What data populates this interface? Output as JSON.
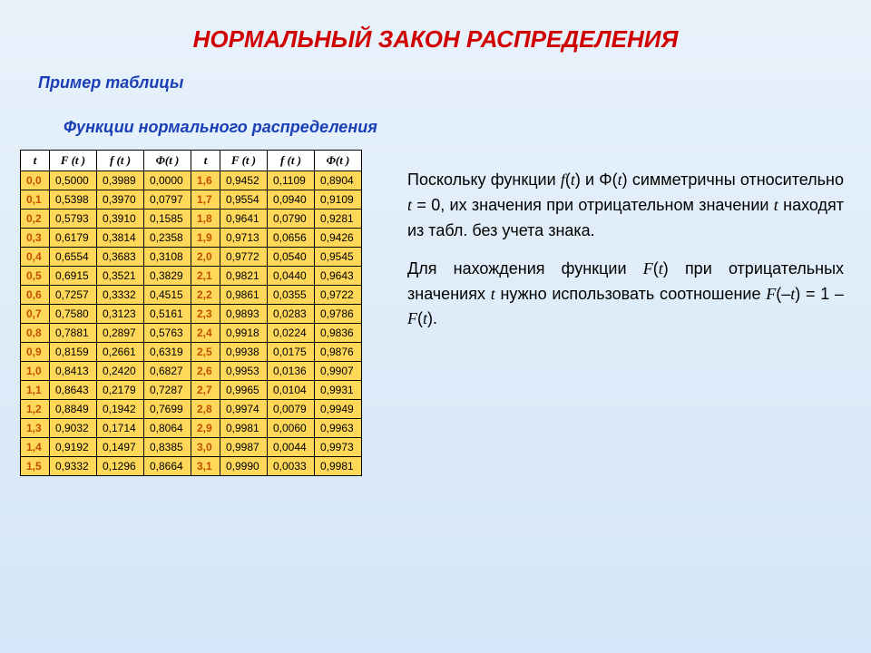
{
  "titles": {
    "main": "НОРМАЛЬНЫЙ ЗАКОН РАСПРЕДЕЛЕНИЯ",
    "sub": "Пример таблицы",
    "table": "Функции нормального распределения"
  },
  "table": {
    "headers": [
      "t",
      "F (t )",
      "f (t )",
      "Φ(t )",
      "t",
      "F (t )",
      "f (t )",
      "Φ(t )"
    ],
    "rows": [
      [
        "0,0",
        "0,5000",
        "0,3989",
        "0,0000",
        "1,6",
        "0,9452",
        "0,1109",
        "0,8904"
      ],
      [
        "0,1",
        "0,5398",
        "0,3970",
        "0,0797",
        "1,7",
        "0,9554",
        "0,0940",
        "0,9109"
      ],
      [
        "0,2",
        "0,5793",
        "0,3910",
        "0,1585",
        "1,8",
        "0,9641",
        "0,0790",
        "0,9281"
      ],
      [
        "0,3",
        "0,6179",
        "0,3814",
        "0,2358",
        "1,9",
        "0,9713",
        "0,0656",
        "0,9426"
      ],
      [
        "0,4",
        "0,6554",
        "0,3683",
        "0,3108",
        "2,0",
        "0,9772",
        "0,0540",
        "0,9545"
      ],
      [
        "0,5",
        "0,6915",
        "0,3521",
        "0,3829",
        "2,1",
        "0,9821",
        "0,0440",
        "0,9643"
      ],
      [
        "0,6",
        "0,7257",
        "0,3332",
        "0,4515",
        "2,2",
        "0,9861",
        "0,0355",
        "0,9722"
      ],
      [
        "0,7",
        "0,7580",
        "0,3123",
        "0,5161",
        "2,3",
        "0,9893",
        "0,0283",
        "0,9786"
      ],
      [
        "0,8",
        "0,7881",
        "0,2897",
        "0,5763",
        "2,4",
        "0,9918",
        "0,0224",
        "0,9836"
      ],
      [
        "0,9",
        "0,8159",
        "0,2661",
        "0,6319",
        "2,5",
        "0,9938",
        "0,0175",
        "0,9876"
      ],
      [
        "1,0",
        "0,8413",
        "0,2420",
        "0,6827",
        "2,6",
        "0,9953",
        "0,0136",
        "0,9907"
      ],
      [
        "1,1",
        "0,8643",
        "0,2179",
        "0,7287",
        "2,7",
        "0,9965",
        "0,0104",
        "0,9931"
      ],
      [
        "1,2",
        "0,8849",
        "0,1942",
        "0,7699",
        "2,8",
        "0,9974",
        "0,0079",
        "0,9949"
      ],
      [
        "1,3",
        "0,9032",
        "0,1714",
        "0,8064",
        "2,9",
        "0,9981",
        "0,0060",
        "0,9963"
      ],
      [
        "1,4",
        "0,9192",
        "0,1497",
        "0,8385",
        "3,0",
        "0,9987",
        "0,0044",
        "0,9973"
      ],
      [
        "1,5",
        "0,9332",
        "0,1296",
        "0,8664",
        "3,1",
        "0,9990",
        "0,0033",
        "0,9981"
      ]
    ],
    "header_bg": "#ffffff",
    "t_col_bg": "#ffd859",
    "t_col_color": "#c05000",
    "v_col_bg": "#ffd859",
    "border_color": "#000000"
  },
  "side": {
    "p1_pre": "Поскольку функции ",
    "p1_f1": "f",
    "p1_mid1": "(",
    "p1_t1": "t",
    "p1_mid2": ") и Φ(",
    "p1_t2": "t",
    "p1_mid3": ") симметричны относительно ",
    "p1_t3": "t",
    "p1_mid4": " = 0, их значения при отрицательном значении ",
    "p1_t4": "t",
    "p1_post": " находят из табл. без учета знака.",
    "p2_pre": "Для нахождения функции ",
    "p2_F": "F",
    "p2_mid1": "(",
    "p2_t1": "t",
    "p2_mid2": ") при отрицательных значениях ",
    "p2_t2": "t",
    "p2_mid3": " нужно использовать соотношение ",
    "p2_F2": "F",
    "p2_mid4": "(–",
    "p2_t3": "t",
    "p2_mid5": ") = 1 – ",
    "p2_F3": "F",
    "p2_mid6": "(",
    "p2_t4": "t",
    "p2_post": ")."
  },
  "colors": {
    "title_red": "#d10000",
    "blue": "#1a3fb5",
    "bg_top": "#e8f2fb",
    "bg_bottom": "#d4e6f7"
  }
}
